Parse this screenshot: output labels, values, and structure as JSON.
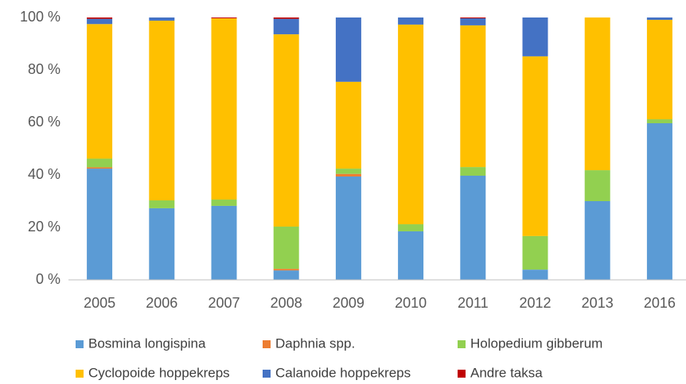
{
  "chart_data": {
    "type": "stacked_bar",
    "categories": [
      "2005",
      "2006",
      "2007",
      "2008",
      "2009",
      "2010",
      "2011",
      "2012",
      "2013",
      "2016"
    ],
    "series": [
      {
        "name": "Bosmina longispina",
        "color": "#5b9bd5",
        "values": [
          42.4,
          27.3,
          28.2,
          3.6,
          39.4,
          18.5,
          39.7,
          3.9,
          30.0,
          59.7
        ]
      },
      {
        "name": "Daphnia spp.",
        "color": "#ed7d31",
        "values": [
          0.5,
          0,
          0,
          0.6,
          1.0,
          0,
          0,
          0,
          0,
          0
        ]
      },
      {
        "name": "Holopedium gibberum",
        "color": "#92d050",
        "values": [
          3.3,
          3.0,
          2.4,
          16.1,
          2.0,
          2.7,
          3.3,
          12.8,
          11.8,
          1.5
        ]
      },
      {
        "name": "Cyclopoide hoppekreps",
        "color": "#ffc000",
        "values": [
          51.3,
          68.5,
          69.1,
          73.3,
          33.1,
          76.1,
          54.0,
          68.5,
          58.2,
          37.9
        ]
      },
      {
        "name": "Calanoide hoppekreps",
        "color": "#4472c4",
        "values": [
          2.0,
          1.2,
          0,
          5.9,
          24.5,
          2.7,
          2.7,
          14.8,
          0,
          0.9
        ]
      },
      {
        "name": "Andre taksa",
        "color": "#c00000",
        "values": [
          0.5,
          0,
          0.3,
          0.5,
          0,
          0,
          0.3,
          0,
          0,
          0
        ]
      }
    ],
    "ylim": [
      0,
      100
    ],
    "yticks": [
      {
        "value": 0,
        "label": "0 %"
      },
      {
        "value": 20,
        "label": "20 %"
      },
      {
        "value": 40,
        "label": "40 %"
      },
      {
        "value": 60,
        "label": "60 %"
      },
      {
        "value": 80,
        "label": "80 %"
      },
      {
        "value": 100,
        "label": "100 %"
      }
    ],
    "grid": false
  }
}
